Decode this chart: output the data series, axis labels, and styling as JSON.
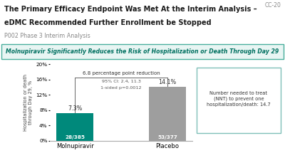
{
  "title_line1": "The Primary Efficacy Endpoint Was Met At the Interim Analysis –",
  "title_line2": "eDMC Recommended Further Enrollment be Stopped",
  "subtitle": "P002 Phase 3 Interim Analysis",
  "slide_code": "CC-20",
  "banner_text": "Molnupiravir Significantly Reduces the Risk of Hospitalization or Death Through Day 29",
  "categories": [
    "Molnupiravir",
    "Placebo"
  ],
  "values": [
    7.3,
    14.1
  ],
  "bar_colors": [
    "#00897B",
    "#9E9E9E"
  ],
  "bar_labels": [
    "28/385",
    "53/377"
  ],
  "value_labels": [
    "7.3%",
    "14.1%"
  ],
  "ylabel": "Hospitalization or death\nthrough Day 29, %",
  "ylim": [
    0,
    20
  ],
  "yticks": [
    0,
    4,
    8,
    12,
    16,
    20
  ],
  "ytick_labels": [
    "0%",
    "4%",
    "8%",
    "12%",
    "16%",
    "20%"
  ],
  "annotation_main": "6.8 percentage point reduction",
  "annotation_ci": "95% CI: 2.4, 11.3",
  "annotation_p": "1-sided p=0.0012",
  "nnt_text": "Number needed to treat\n(NNT) to prevent one\nhospitalization/death: 14.7",
  "bg_color": "#FFFFFF",
  "banner_bg": "#E8F5F3",
  "banner_border": "#4CAF9E",
  "banner_text_color": "#007060",
  "title_color": "#1A1A1A",
  "subtitle_color": "#888888",
  "nnt_border": "#7FBFB8"
}
